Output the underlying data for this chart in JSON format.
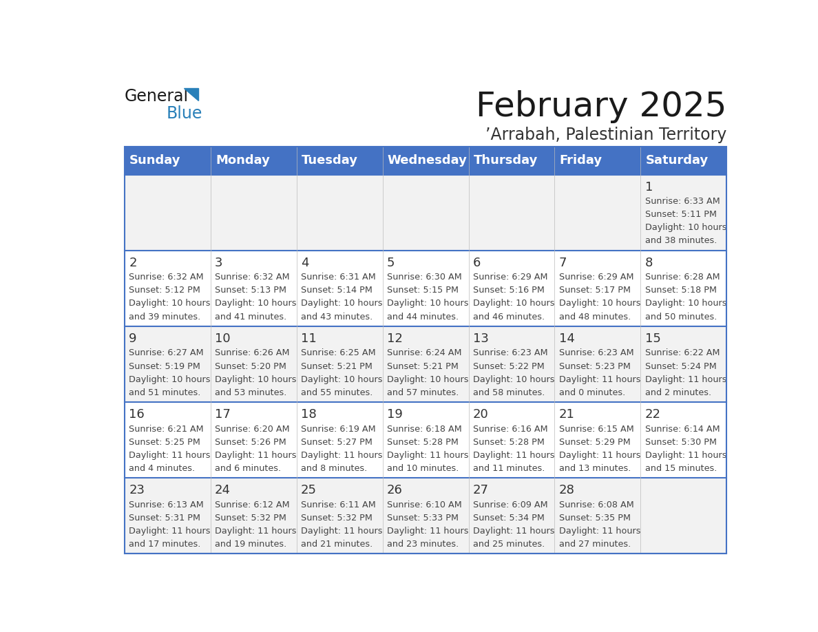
{
  "title": "February 2025",
  "subtitle": "’Arrabah, Palestinian Territory",
  "header_bg_color": "#4472C4",
  "header_text_color": "#FFFFFF",
  "days_of_week": [
    "Sunday",
    "Monday",
    "Tuesday",
    "Wednesday",
    "Thursday",
    "Friday",
    "Saturday"
  ],
  "row1_bg": "#F2F2F2",
  "row2_bg": "#FFFFFF",
  "border_color": "#4472C4",
  "text_color": "#333333",
  "day_num_color": "#333333",
  "calendar_data": [
    [
      null,
      null,
      null,
      null,
      null,
      null,
      {
        "day": "1",
        "sunrise": "6:33 AM",
        "sunset": "5:11 PM",
        "daylight_line1": "10 hours",
        "daylight_line2": "and 38 minutes."
      }
    ],
    [
      {
        "day": "2",
        "sunrise": "6:32 AM",
        "sunset": "5:12 PM",
        "daylight_line1": "10 hours",
        "daylight_line2": "and 39 minutes."
      },
      {
        "day": "3",
        "sunrise": "6:32 AM",
        "sunset": "5:13 PM",
        "daylight_line1": "10 hours",
        "daylight_line2": "and 41 minutes."
      },
      {
        "day": "4",
        "sunrise": "6:31 AM",
        "sunset": "5:14 PM",
        "daylight_line1": "10 hours",
        "daylight_line2": "and 43 minutes."
      },
      {
        "day": "5",
        "sunrise": "6:30 AM",
        "sunset": "5:15 PM",
        "daylight_line1": "10 hours",
        "daylight_line2": "and 44 minutes."
      },
      {
        "day": "6",
        "sunrise": "6:29 AM",
        "sunset": "5:16 PM",
        "daylight_line1": "10 hours",
        "daylight_line2": "and 46 minutes."
      },
      {
        "day": "7",
        "sunrise": "6:29 AM",
        "sunset": "5:17 PM",
        "daylight_line1": "10 hours",
        "daylight_line2": "and 48 minutes."
      },
      {
        "day": "8",
        "sunrise": "6:28 AM",
        "sunset": "5:18 PM",
        "daylight_line1": "10 hours",
        "daylight_line2": "and 50 minutes."
      }
    ],
    [
      {
        "day": "9",
        "sunrise": "6:27 AM",
        "sunset": "5:19 PM",
        "daylight_line1": "10 hours",
        "daylight_line2": "and 51 minutes."
      },
      {
        "day": "10",
        "sunrise": "6:26 AM",
        "sunset": "5:20 PM",
        "daylight_line1": "10 hours",
        "daylight_line2": "and 53 minutes."
      },
      {
        "day": "11",
        "sunrise": "6:25 AM",
        "sunset": "5:21 PM",
        "daylight_line1": "10 hours",
        "daylight_line2": "and 55 minutes."
      },
      {
        "day": "12",
        "sunrise": "6:24 AM",
        "sunset": "5:21 PM",
        "daylight_line1": "10 hours",
        "daylight_line2": "and 57 minutes."
      },
      {
        "day": "13",
        "sunrise": "6:23 AM",
        "sunset": "5:22 PM",
        "daylight_line1": "10 hours",
        "daylight_line2": "and 58 minutes."
      },
      {
        "day": "14",
        "sunrise": "6:23 AM",
        "sunset": "5:23 PM",
        "daylight_line1": "11 hours",
        "daylight_line2": "and 0 minutes."
      },
      {
        "day": "15",
        "sunrise": "6:22 AM",
        "sunset": "5:24 PM",
        "daylight_line1": "11 hours",
        "daylight_line2": "and 2 minutes."
      }
    ],
    [
      {
        "day": "16",
        "sunrise": "6:21 AM",
        "sunset": "5:25 PM",
        "daylight_line1": "11 hours",
        "daylight_line2": "and 4 minutes."
      },
      {
        "day": "17",
        "sunrise": "6:20 AM",
        "sunset": "5:26 PM",
        "daylight_line1": "11 hours",
        "daylight_line2": "and 6 minutes."
      },
      {
        "day": "18",
        "sunrise": "6:19 AM",
        "sunset": "5:27 PM",
        "daylight_line1": "11 hours",
        "daylight_line2": "and 8 minutes."
      },
      {
        "day": "19",
        "sunrise": "6:18 AM",
        "sunset": "5:28 PM",
        "daylight_line1": "11 hours",
        "daylight_line2": "and 10 minutes."
      },
      {
        "day": "20",
        "sunrise": "6:16 AM",
        "sunset": "5:28 PM",
        "daylight_line1": "11 hours",
        "daylight_line2": "and 11 minutes."
      },
      {
        "day": "21",
        "sunrise": "6:15 AM",
        "sunset": "5:29 PM",
        "daylight_line1": "11 hours",
        "daylight_line2": "and 13 minutes."
      },
      {
        "day": "22",
        "sunrise": "6:14 AM",
        "sunset": "5:30 PM",
        "daylight_line1": "11 hours",
        "daylight_line2": "and 15 minutes."
      }
    ],
    [
      {
        "day": "23",
        "sunrise": "6:13 AM",
        "sunset": "5:31 PM",
        "daylight_line1": "11 hours",
        "daylight_line2": "and 17 minutes."
      },
      {
        "day": "24",
        "sunrise": "6:12 AM",
        "sunset": "5:32 PM",
        "daylight_line1": "11 hours",
        "daylight_line2": "and 19 minutes."
      },
      {
        "day": "25",
        "sunrise": "6:11 AM",
        "sunset": "5:32 PM",
        "daylight_line1": "11 hours",
        "daylight_line2": "and 21 minutes."
      },
      {
        "day": "26",
        "sunrise": "6:10 AM",
        "sunset": "5:33 PM",
        "daylight_line1": "11 hours",
        "daylight_line2": "and 23 minutes."
      },
      {
        "day": "27",
        "sunrise": "6:09 AM",
        "sunset": "5:34 PM",
        "daylight_line1": "11 hours",
        "daylight_line2": "and 25 minutes."
      },
      {
        "day": "28",
        "sunrise": "6:08 AM",
        "sunset": "5:35 PM",
        "daylight_line1": "11 hours",
        "daylight_line2": "and 27 minutes."
      },
      null
    ]
  ]
}
